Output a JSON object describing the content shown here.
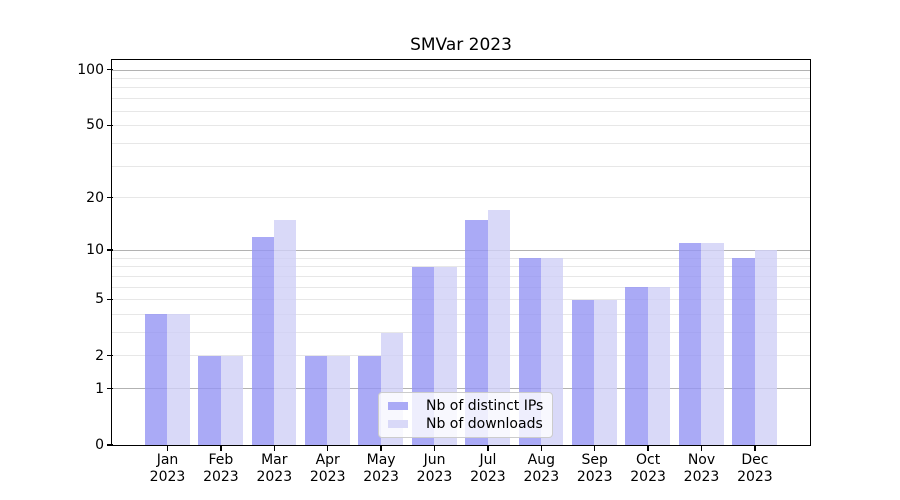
{
  "chart_data": {
    "type": "bar",
    "title": "SMVar 2023",
    "categories": [
      "Jan",
      "Feb",
      "Mar",
      "Apr",
      "May",
      "Jun",
      "Jul",
      "Aug",
      "Sep",
      "Oct",
      "Nov",
      "Dec"
    ],
    "year_label": "2023",
    "series": [
      {
        "name": "Nb of distinct IPs",
        "color": "#aaaaf6",
        "values": [
          4,
          2,
          12,
          2,
          2,
          8,
          15,
          9,
          5,
          6,
          11,
          9
        ]
      },
      {
        "name": "Nb of downloads",
        "color": "#d9d9f8",
        "values": [
          4,
          2,
          15,
          2,
          3,
          8,
          17,
          9,
          5,
          6,
          11,
          10
        ]
      }
    ],
    "xlabel": "",
    "ylabel": "",
    "yscale": "symlog",
    "ylim": [
      0,
      112
    ],
    "ytick_values": [
      0,
      1,
      2,
      5,
      10,
      20,
      50,
      100
    ],
    "ytick_labels": [
      "0",
      "1",
      "2",
      "5",
      "10",
      "20",
      "50",
      "100"
    ],
    "major_grid_values": [
      1,
      10,
      100
    ],
    "minor_grid_values": [
      2,
      3,
      4,
      5,
      6,
      7,
      8,
      9,
      20,
      30,
      40,
      50,
      60,
      70,
      80,
      90
    ],
    "grid": true,
    "legend_position": "lower center",
    "colors": {
      "major_grid": "#b2b2b2",
      "minor_grid": "#e7e7e7",
      "axis": "#000000",
      "background": "#ffffff"
    }
  }
}
